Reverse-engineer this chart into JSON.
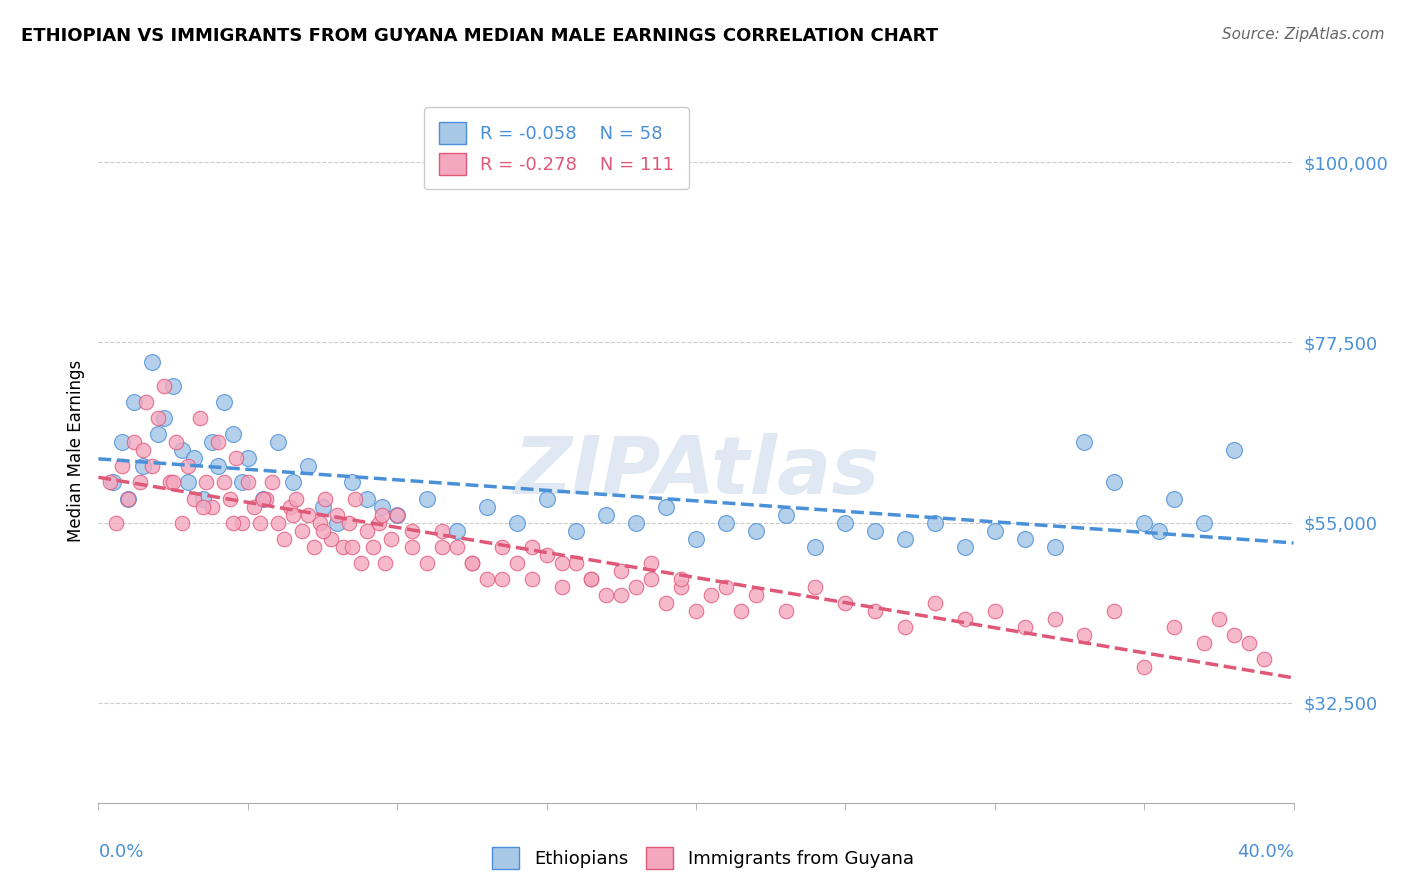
{
  "title": "ETHIOPIAN VS IMMIGRANTS FROM GUYANA MEDIAN MALE EARNINGS CORRELATION CHART",
  "source": "Source: ZipAtlas.com",
  "ylabel": "Median Male Earnings",
  "yticks": [
    32500,
    55000,
    77500,
    100000
  ],
  "ytick_labels": [
    "$32,500",
    "$55,000",
    "$77,500",
    "$100,000"
  ],
  "xmin": 0.0,
  "xmax": 0.4,
  "ymin": 20000,
  "ymax": 108000,
  "legend_r1": "R = -0.058",
  "legend_n1": "N = 58",
  "legend_r2": "R = -0.278",
  "legend_n2": "N = 111",
  "label1": "Ethiopians",
  "label2": "Immigrants from Guyana",
  "color1": "#a8c8e8",
  "color2": "#f4a8c0",
  "trendline1_color": "#4a90d9",
  "trendline2_color": "#e05878",
  "watermark": "ZIPAtlas",
  "watermark_color": "#c8d8ea",
  "ethiopians_x": [
    0.005,
    0.008,
    0.01,
    0.012,
    0.015,
    0.018,
    0.02,
    0.022,
    0.025,
    0.028,
    0.03,
    0.032,
    0.035,
    0.038,
    0.04,
    0.042,
    0.045,
    0.048,
    0.05,
    0.055,
    0.06,
    0.065,
    0.07,
    0.075,
    0.08,
    0.085,
    0.09,
    0.095,
    0.1,
    0.11,
    0.12,
    0.13,
    0.14,
    0.15,
    0.16,
    0.17,
    0.18,
    0.19,
    0.2,
    0.21,
    0.22,
    0.23,
    0.24,
    0.25,
    0.26,
    0.27,
    0.28,
    0.29,
    0.3,
    0.31,
    0.32,
    0.33,
    0.34,
    0.35,
    0.355,
    0.36,
    0.37,
    0.38
  ],
  "ethiopians_y": [
    60000,
    65000,
    58000,
    70000,
    62000,
    75000,
    66000,
    68000,
    72000,
    64000,
    60000,
    63000,
    58000,
    65000,
    62000,
    70000,
    66000,
    60000,
    63000,
    58000,
    65000,
    60000,
    62000,
    57000,
    55000,
    60000,
    58000,
    57000,
    56000,
    58000,
    54000,
    57000,
    55000,
    58000,
    54000,
    56000,
    55000,
    57000,
    53000,
    55000,
    54000,
    56000,
    52000,
    55000,
    54000,
    53000,
    55000,
    52000,
    54000,
    53000,
    52000,
    65000,
    60000,
    55000,
    54000,
    58000,
    55000,
    64000
  ],
  "guyana_x": [
    0.004,
    0.006,
    0.008,
    0.01,
    0.012,
    0.014,
    0.016,
    0.018,
    0.02,
    0.022,
    0.024,
    0.026,
    0.028,
    0.03,
    0.032,
    0.034,
    0.036,
    0.038,
    0.04,
    0.042,
    0.044,
    0.046,
    0.048,
    0.05,
    0.052,
    0.054,
    0.056,
    0.058,
    0.06,
    0.062,
    0.064,
    0.066,
    0.068,
    0.07,
    0.072,
    0.074,
    0.076,
    0.078,
    0.08,
    0.082,
    0.084,
    0.086,
    0.088,
    0.09,
    0.092,
    0.094,
    0.096,
    0.098,
    0.1,
    0.105,
    0.11,
    0.115,
    0.12,
    0.125,
    0.13,
    0.135,
    0.14,
    0.145,
    0.15,
    0.155,
    0.16,
    0.165,
    0.17,
    0.175,
    0.18,
    0.185,
    0.19,
    0.195,
    0.2,
    0.21,
    0.22,
    0.23,
    0.24,
    0.25,
    0.26,
    0.27,
    0.28,
    0.29,
    0.3,
    0.31,
    0.32,
    0.33,
    0.34,
    0.35,
    0.36,
    0.37,
    0.375,
    0.38,
    0.385,
    0.39,
    0.015,
    0.025,
    0.035,
    0.045,
    0.055,
    0.065,
    0.075,
    0.085,
    0.095,
    0.105,
    0.115,
    0.125,
    0.135,
    0.145,
    0.155,
    0.165,
    0.175,
    0.185,
    0.195,
    0.205,
    0.215
  ],
  "guyana_y": [
    60000,
    55000,
    62000,
    58000,
    65000,
    60000,
    70000,
    62000,
    68000,
    72000,
    60000,
    65000,
    55000,
    62000,
    58000,
    68000,
    60000,
    57000,
    65000,
    60000,
    58000,
    63000,
    55000,
    60000,
    57000,
    55000,
    58000,
    60000,
    55000,
    53000,
    57000,
    58000,
    54000,
    56000,
    52000,
    55000,
    58000,
    53000,
    56000,
    52000,
    55000,
    58000,
    50000,
    54000,
    52000,
    55000,
    50000,
    53000,
    56000,
    52000,
    50000,
    54000,
    52000,
    50000,
    48000,
    52000,
    50000,
    48000,
    51000,
    47000,
    50000,
    48000,
    46000,
    49000,
    47000,
    48000,
    45000,
    47000,
    44000,
    47000,
    46000,
    44000,
    47000,
    45000,
    44000,
    42000,
    45000,
    43000,
    44000,
    42000,
    43000,
    41000,
    44000,
    37000,
    42000,
    40000,
    43000,
    41000,
    40000,
    38000,
    64000,
    60000,
    57000,
    55000,
    58000,
    56000,
    54000,
    52000,
    56000,
    54000,
    52000,
    50000,
    48000,
    52000,
    50000,
    48000,
    46000,
    50000,
    48000,
    46000,
    44000
  ]
}
